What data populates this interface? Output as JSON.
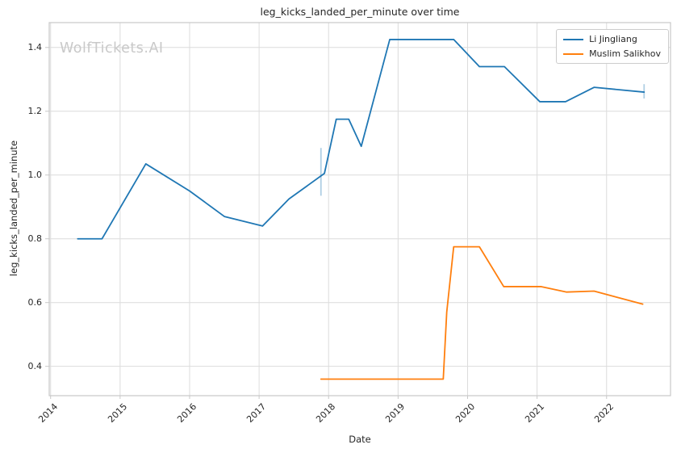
{
  "watermark": "WolfTickets.AI",
  "colors": {
    "grid": "#dcdcdc",
    "spine": "#c8c8c8",
    "text": "#262626",
    "series_blue": "#1f77b4",
    "series_orange": "#ff7f0e"
  },
  "chart_data": {
    "type": "line",
    "title": "leg_kicks_landed_per_minute over time",
    "xlabel": "Date",
    "ylabel": "leg_kicks_landed_per_minute",
    "grid": true,
    "legend_position": "upper right",
    "xlim": [
      2013.98,
      2022.92
    ],
    "ylim": [
      0.308,
      1.478
    ],
    "x_ticks": [
      2014,
      2015,
      2016,
      2017,
      2018,
      2019,
      2020,
      2021,
      2022
    ],
    "x_tick_labels": [
      "2014",
      "2015",
      "2016",
      "2017",
      "2018",
      "2019",
      "2020",
      "2021",
      "2022"
    ],
    "y_ticks": [
      0.4,
      0.6,
      0.8,
      1.0,
      1.2,
      1.4
    ],
    "y_tick_labels": [
      "0.4",
      "0.6",
      "0.8",
      "1.0",
      "1.2",
      "1.4"
    ],
    "series": [
      {
        "name": "Li Jingliang",
        "color": "#1f77b4",
        "x": [
          2014.39,
          2014.74,
          2015.37,
          2016.0,
          2016.5,
          2017.05,
          2017.43,
          2017.94,
          2018.11,
          2018.29,
          2018.47,
          2018.88,
          2019.8,
          2020.17,
          2020.53,
          2021.04,
          2021.41,
          2021.82,
          2022.54
        ],
        "y": [
          0.8,
          0.8,
          1.035,
          0.95,
          0.87,
          0.84,
          0.925,
          1.005,
          1.175,
          1.175,
          1.09,
          1.425,
          1.425,
          1.34,
          1.34,
          1.23,
          1.23,
          1.275,
          1.26
        ]
      },
      {
        "name": "Muslim Salikhov",
        "color": "#ff7f0e",
        "x": [
          2017.89,
          2019.65,
          2019.7,
          2019.8,
          2020.17,
          2020.52,
          2021.06,
          2021.42,
          2021.82,
          2022.52
        ],
        "y": [
          0.36,
          0.36,
          0.57,
          0.775,
          0.775,
          0.65,
          0.65,
          0.633,
          0.636,
          0.595
        ]
      }
    ],
    "faint_segments": [
      {
        "color": "#1f77b4",
        "opacity": 0.35,
        "x": 2017.89,
        "y1": 0.935,
        "y2": 1.085
      },
      {
        "color": "#1f77b4",
        "opacity": 0.35,
        "x": 2022.54,
        "y1": 1.24,
        "y2": 1.285
      }
    ]
  }
}
